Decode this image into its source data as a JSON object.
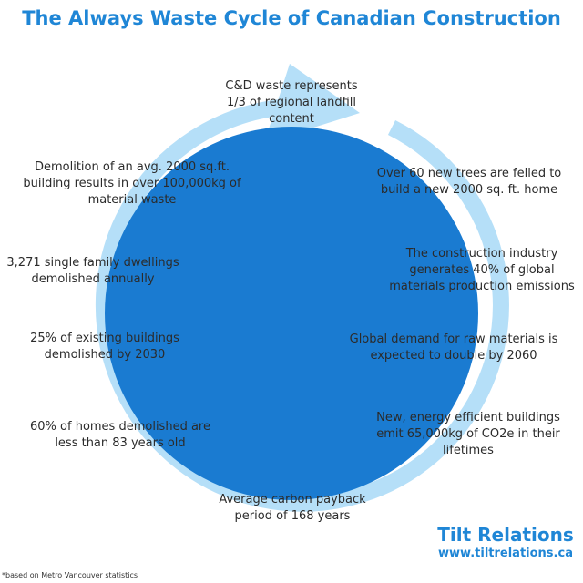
{
  "title": "The Always Waste Cycle of Canadian Construction",
  "colors": {
    "title": "#1f86d6",
    "circle": "#1a7bd1",
    "ring": "#b5dff8",
    "text": "#2b2b2b"
  },
  "cycle_steps": [
    "C&D waste represents 1/3 of regional landfill content",
    "Over 60 new trees are felled to build a new 2000 sq. ft. home",
    "The construction industry generates 40% of global materials production emissions",
    "Global demand for raw materials is expected to double by 2060",
    "New, energy efficient buildings emit 65,000kg of CO2e in their lifetimes",
    "Average carbon payback period of 168 years",
    "60% of homes demolished are less than 83 years old",
    "25% of existing buildings demolished by 2030",
    "3,271 single family dwellings demolished annually",
    "Demolition of an avg. 2000 sq.ft. building results in over 100,000kg of material waste"
  ],
  "brand": {
    "name": "Tilt Relations",
    "url": "www.tiltrelations.ca"
  },
  "footnote": "*based on Metro Vancouver statistics"
}
